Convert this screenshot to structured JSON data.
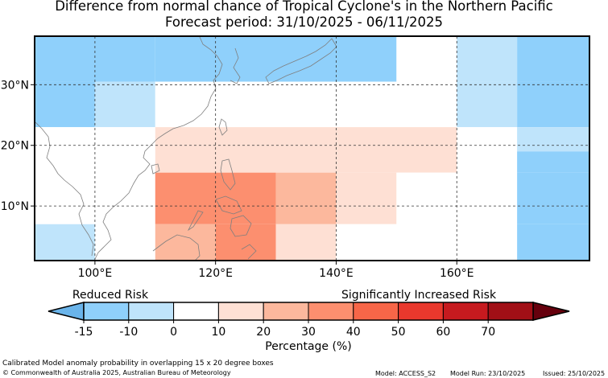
{
  "title": {
    "line1": "Difference from normal chance of Tropical Cyclone's in the Northern Pacific",
    "line2": "Forecast period: 31/10/2025 - 06/11/2025"
  },
  "chart_data": {
    "type": "heatmap",
    "title": "Difference from normal chance of Tropical Cyclone's in the Northern Pacific",
    "subtitle": "Forecast period: 31/10/2025 - 06/11/2025",
    "x_axis": {
      "label": "",
      "range_lon_deg": [
        90,
        182
      ],
      "ticks": [
        100,
        120,
        140,
        160
      ],
      "tick_labels": [
        "100°E",
        "120°E",
        "140°E",
        "160°E"
      ]
    },
    "y_axis": {
      "label": "",
      "range_lat_deg": [
        1,
        38
      ],
      "ticks": [
        10,
        20,
        30
      ],
      "tick_labels": [
        "10°N",
        "20°N",
        "30°N"
      ]
    },
    "grid": "dashed at tick lines",
    "cells": [
      {
        "lon": [
          90,
          110
        ],
        "lat": [
          30.5,
          38
        ],
        "value": -15
      },
      {
        "lon": [
          110,
          150
        ],
        "lat": [
          30.5,
          38
        ],
        "value": -15
      },
      {
        "lon": [
          150,
          160
        ],
        "lat": [
          30.5,
          38
        ],
        "value": 0
      },
      {
        "lon": [
          160,
          170
        ],
        "lat": [
          30.5,
          38
        ],
        "value": -10
      },
      {
        "lon": [
          170,
          182
        ],
        "lat": [
          30.5,
          38
        ],
        "value": -15
      },
      {
        "lon": [
          90,
          100
        ],
        "lat": [
          23,
          30.5
        ],
        "value": -15
      },
      {
        "lon": [
          100,
          110
        ],
        "lat": [
          23,
          30.5
        ],
        "value": -10
      },
      {
        "lon": [
          110,
          140
        ],
        "lat": [
          23,
          30.5
        ],
        "value": 0
      },
      {
        "lon": [
          140,
          160
        ],
        "lat": [
          23,
          30.5
        ],
        "value": 5
      },
      {
        "lon": [
          160,
          170
        ],
        "lat": [
          23,
          30.5
        ],
        "value": -10
      },
      {
        "lon": [
          170,
          182
        ],
        "lat": [
          23,
          30.5
        ],
        "value": -15
      },
      {
        "lon": [
          90,
          100
        ],
        "lat": [
          15.5,
          23
        ],
        "value": 0
      },
      {
        "lon": [
          100,
          110
        ],
        "lat": [
          15.5,
          23
        ],
        "value": 5
      },
      {
        "lon": [
          110,
          160
        ],
        "lat": [
          15.5,
          23
        ],
        "value": 15
      },
      {
        "lon": [
          160,
          170
        ],
        "lat": [
          15.5,
          23
        ],
        "value": 0
      },
      {
        "lon": [
          170,
          182
        ],
        "lat": [
          19,
          23
        ],
        "value": -10
      },
      {
        "lon": [
          170,
          182
        ],
        "lat": [
          15.5,
          19
        ],
        "value": -15
      },
      {
        "lon": [
          90,
          100
        ],
        "lat": [
          7,
          15.5
        ],
        "value": 0
      },
      {
        "lon": [
          100,
          110
        ],
        "lat": [
          7,
          15.5
        ],
        "value": 5
      },
      {
        "lon": [
          110,
          130
        ],
        "lat": [
          7,
          15.5
        ],
        "value": 35
      },
      {
        "lon": [
          130,
          140
        ],
        "lat": [
          7,
          15.5
        ],
        "value": 25
      },
      {
        "lon": [
          140,
          150
        ],
        "lat": [
          7,
          15.5
        ],
        "value": 15
      },
      {
        "lon": [
          150,
          160
        ],
        "lat": [
          7,
          15.5
        ],
        "value": 5
      },
      {
        "lon": [
          160,
          170
        ],
        "lat": [
          7,
          15.5
        ],
        "value": 0
      },
      {
        "lon": [
          170,
          182
        ],
        "lat": [
          7,
          15.5
        ],
        "value": -15
      },
      {
        "lon": [
          90,
          100
        ],
        "lat": [
          1,
          7
        ],
        "value": -10
      },
      {
        "lon": [
          100,
          110
        ],
        "lat": [
          1,
          7
        ],
        "value": 5
      },
      {
        "lon": [
          110,
          120
        ],
        "lat": [
          1,
          7
        ],
        "value": 25
      },
      {
        "lon": [
          120,
          130
        ],
        "lat": [
          1,
          7
        ],
        "value": 35
      },
      {
        "lon": [
          130,
          140
        ],
        "lat": [
          1,
          7
        ],
        "value": 15
      },
      {
        "lon": [
          140,
          160
        ],
        "lat": [
          1,
          7
        ],
        "value": 5
      },
      {
        "lon": [
          160,
          170
        ],
        "lat": [
          1,
          7
        ],
        "value": 0
      },
      {
        "lon": [
          170,
          182
        ],
        "lat": [
          1,
          7
        ],
        "value": -15
      }
    ],
    "legend": {
      "placement": "bottom",
      "label_low": "Reduced Risk",
      "label_high": "Significantly Increased Risk",
      "axis_label": "Percentage (%)",
      "bounds": [
        -15,
        -10,
        0,
        10,
        20,
        30,
        40,
        50,
        60,
        70
      ],
      "tick_labels": [
        "-15",
        "-10",
        "0",
        "10",
        "20",
        "30",
        "40",
        "50",
        "60",
        "70"
      ],
      "colors": [
        "#8fd0fb",
        "#bfe4fb",
        "#ffffff",
        "#fee0d4",
        "#fcb89d",
        "#fc8f6f",
        "#f76648",
        "#e9382d",
        "#c61a1f",
        "#a10f16"
      ],
      "under_color": "#6ab4ea",
      "over_color": "#66000d"
    }
  },
  "footer": {
    "description": "Calibrated Model anomaly probability in overlapping 15 x 20 degree boxes",
    "copyright": "© Commonwealth of Australia 2025, Australian Bureau of Meteorology",
    "model": "Model: ACCESS_S2",
    "model_run": "Model Run: 23/10/2025",
    "issued": "Issued: 25/10/2025"
  },
  "colors": {
    "border": "#000000",
    "coastline": "#808080",
    "grid": "#333333"
  }
}
